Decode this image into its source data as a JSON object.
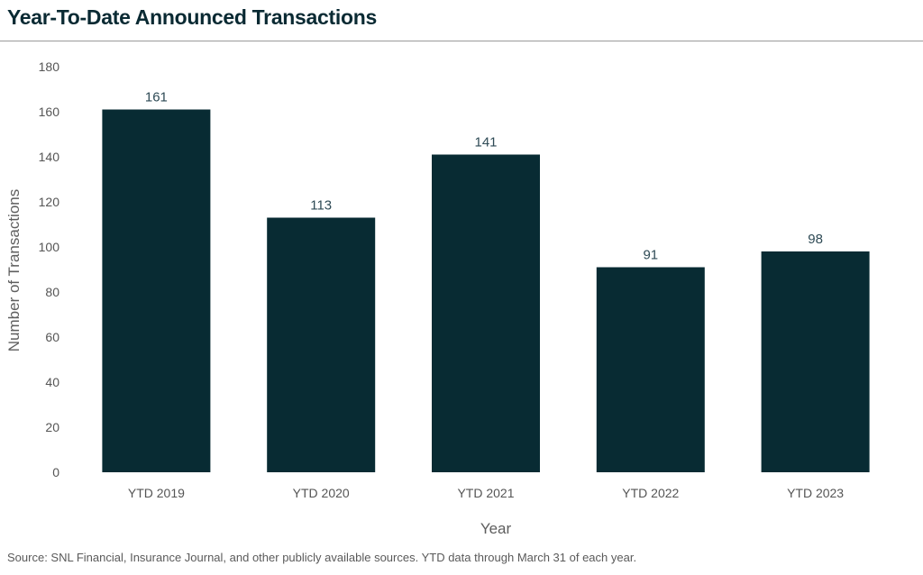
{
  "header": {
    "title": "Year-To-Date Announced Transactions"
  },
  "footer": {
    "source": "Source: SNL Financial, Insurance Journal, and other publicly available sources. YTD data through March 31 of each year."
  },
  "chart_data": {
    "type": "bar",
    "categories": [
      "YTD 2019",
      "YTD 2020",
      "YTD 2021",
      "YTD 2022",
      "YTD 2023"
    ],
    "values": [
      161,
      113,
      141,
      91,
      98
    ],
    "data_labels": [
      "161",
      "113",
      "141",
      "91",
      "98"
    ],
    "xlabel": "Year",
    "ylabel": "Number of Transactions",
    "ylim": [
      0,
      180
    ],
    "yticks": [
      0,
      20,
      40,
      60,
      80,
      100,
      120,
      140,
      160,
      180
    ],
    "ytick_labels": [
      "0",
      "20",
      "40",
      "60",
      "80",
      "100",
      "120",
      "140",
      "160",
      "180"
    ],
    "grid": false,
    "legend": "none",
    "colors": {
      "bar": "#082b33",
      "data_label": "#2e4a55",
      "tick_label": "#555555",
      "axis_title": "#5e5e5e"
    }
  }
}
